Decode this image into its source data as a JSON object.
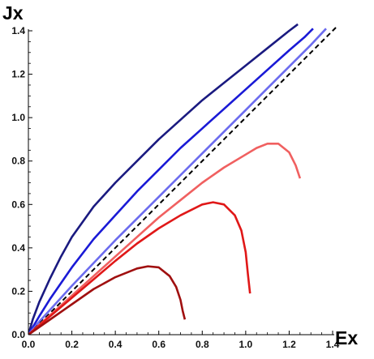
{
  "chart_data": {
    "type": "line",
    "xlabel": "Ex",
    "ylabel": "Jx",
    "xlim": [
      0,
      1.4
    ],
    "ylim": [
      0,
      1.4
    ],
    "xticks": [
      "0.0",
      "0.2",
      "0.4",
      "0.6",
      "0.8",
      "1.0",
      "1.2",
      "1.4"
    ],
    "yticks": [
      "0.0",
      "0.2",
      "0.4",
      "0.6",
      "0.8",
      "1.0",
      "1.2",
      "1.4"
    ],
    "grid": false,
    "series": [
      {
        "color": "#1a1a80",
        "x": [
          0,
          0.02,
          0.05,
          0.1,
          0.15,
          0.2,
          0.3,
          0.4,
          0.5,
          0.6,
          0.7,
          0.8,
          0.9,
          1.0,
          1.1,
          1.2,
          1.24
        ],
        "y": [
          0,
          0.07,
          0.15,
          0.26,
          0.36,
          0.45,
          0.59,
          0.7,
          0.8,
          0.9,
          0.99,
          1.08,
          1.16,
          1.24,
          1.32,
          1.4,
          1.43
        ]
      },
      {
        "color": "#1a1ad6",
        "x": [
          0,
          0.05,
          0.1,
          0.2,
          0.3,
          0.4,
          0.5,
          0.6,
          0.7,
          0.8,
          0.9,
          1.0,
          1.1,
          1.2,
          1.27,
          1.31
        ],
        "y": [
          0,
          0.085,
          0.165,
          0.31,
          0.44,
          0.55,
          0.66,
          0.76,
          0.86,
          0.95,
          1.04,
          1.13,
          1.22,
          1.31,
          1.37,
          1.41
        ]
      },
      {
        "color": "#6b6bee",
        "x": [
          0,
          0.05,
          0.1,
          0.2,
          0.3,
          0.4,
          0.5,
          0.6,
          0.7,
          0.8,
          0.9,
          1.0,
          1.1,
          1.2,
          1.3,
          1.37
        ],
        "y": [
          0,
          0.06,
          0.115,
          0.225,
          0.33,
          0.435,
          0.535,
          0.635,
          0.735,
          0.835,
          0.935,
          1.035,
          1.135,
          1.235,
          1.335,
          1.41
        ]
      },
      {
        "color": "#000000",
        "dashed": true,
        "x": [
          0,
          1.42
        ],
        "y": [
          0,
          1.42
        ]
      },
      {
        "color": "#f06060",
        "x": [
          0,
          0.1,
          0.2,
          0.3,
          0.4,
          0.5,
          0.6,
          0.7,
          0.8,
          0.9,
          1.0,
          1.05,
          1.1,
          1.15,
          1.2,
          1.23,
          1.25,
          1.25
        ],
        "y": [
          0,
          0.09,
          0.18,
          0.27,
          0.36,
          0.45,
          0.54,
          0.62,
          0.7,
          0.77,
          0.83,
          0.86,
          0.88,
          0.88,
          0.84,
          0.78,
          0.72,
          0.72
        ]
      },
      {
        "color": "#e01818",
        "x": [
          0,
          0.1,
          0.2,
          0.3,
          0.4,
          0.5,
          0.6,
          0.7,
          0.8,
          0.85,
          0.9,
          0.95,
          0.98,
          1.0,
          1.01,
          1.02
        ],
        "y": [
          0,
          0.085,
          0.17,
          0.255,
          0.34,
          0.42,
          0.49,
          0.55,
          0.6,
          0.61,
          0.6,
          0.55,
          0.48,
          0.38,
          0.28,
          0.19
        ]
      },
      {
        "color": "#a01010",
        "x": [
          0,
          0.1,
          0.2,
          0.3,
          0.4,
          0.5,
          0.55,
          0.6,
          0.65,
          0.68,
          0.7,
          0.71,
          0.72
        ],
        "y": [
          0,
          0.07,
          0.14,
          0.21,
          0.265,
          0.305,
          0.315,
          0.31,
          0.27,
          0.22,
          0.16,
          0.11,
          0.07
        ]
      }
    ]
  }
}
